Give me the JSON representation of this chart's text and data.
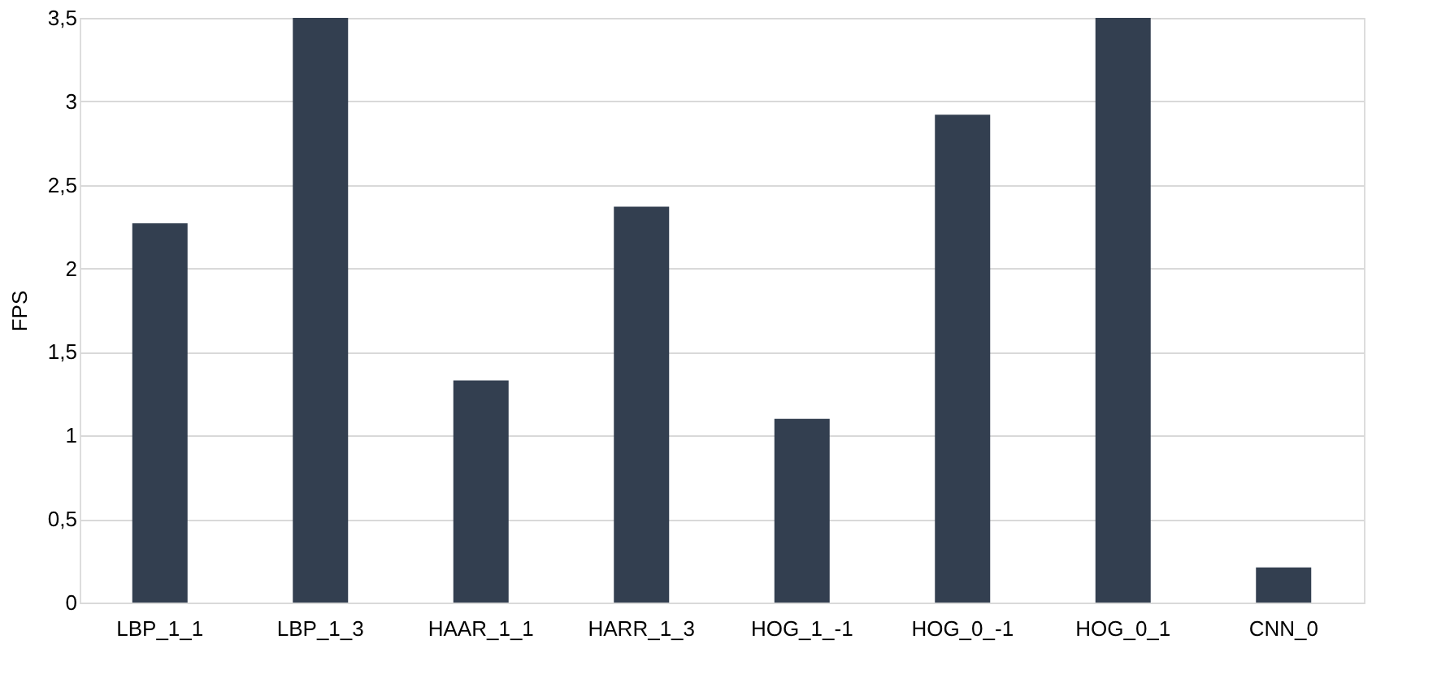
{
  "chart_data": {
    "type": "bar",
    "ylabel": "FPS",
    "categories": [
      "LBP_1_1",
      "LBP_1_3",
      "HAAR_1_1",
      "HARR_1_3",
      "HOG_1_-1",
      "HOG_0_-1",
      "HOG_0_1",
      "CNN_0"
    ],
    "values": [
      2.27,
      3.5,
      1.33,
      2.37,
      1.1,
      2.92,
      3.5,
      0.21
    ],
    "color": "#333f50",
    "ylim": [
      0,
      3.5
    ],
    "yticks": [
      0,
      {
        "value": 0.5,
        "label": "0,5"
      },
      1,
      {
        "value": 1.5,
        "label": "1,5"
      },
      2,
      {
        "value": 2.5,
        "label": "2,5"
      },
      3,
      {
        "value": 3.5,
        "label": "3,5"
      }
    ],
    "grid": "y"
  }
}
